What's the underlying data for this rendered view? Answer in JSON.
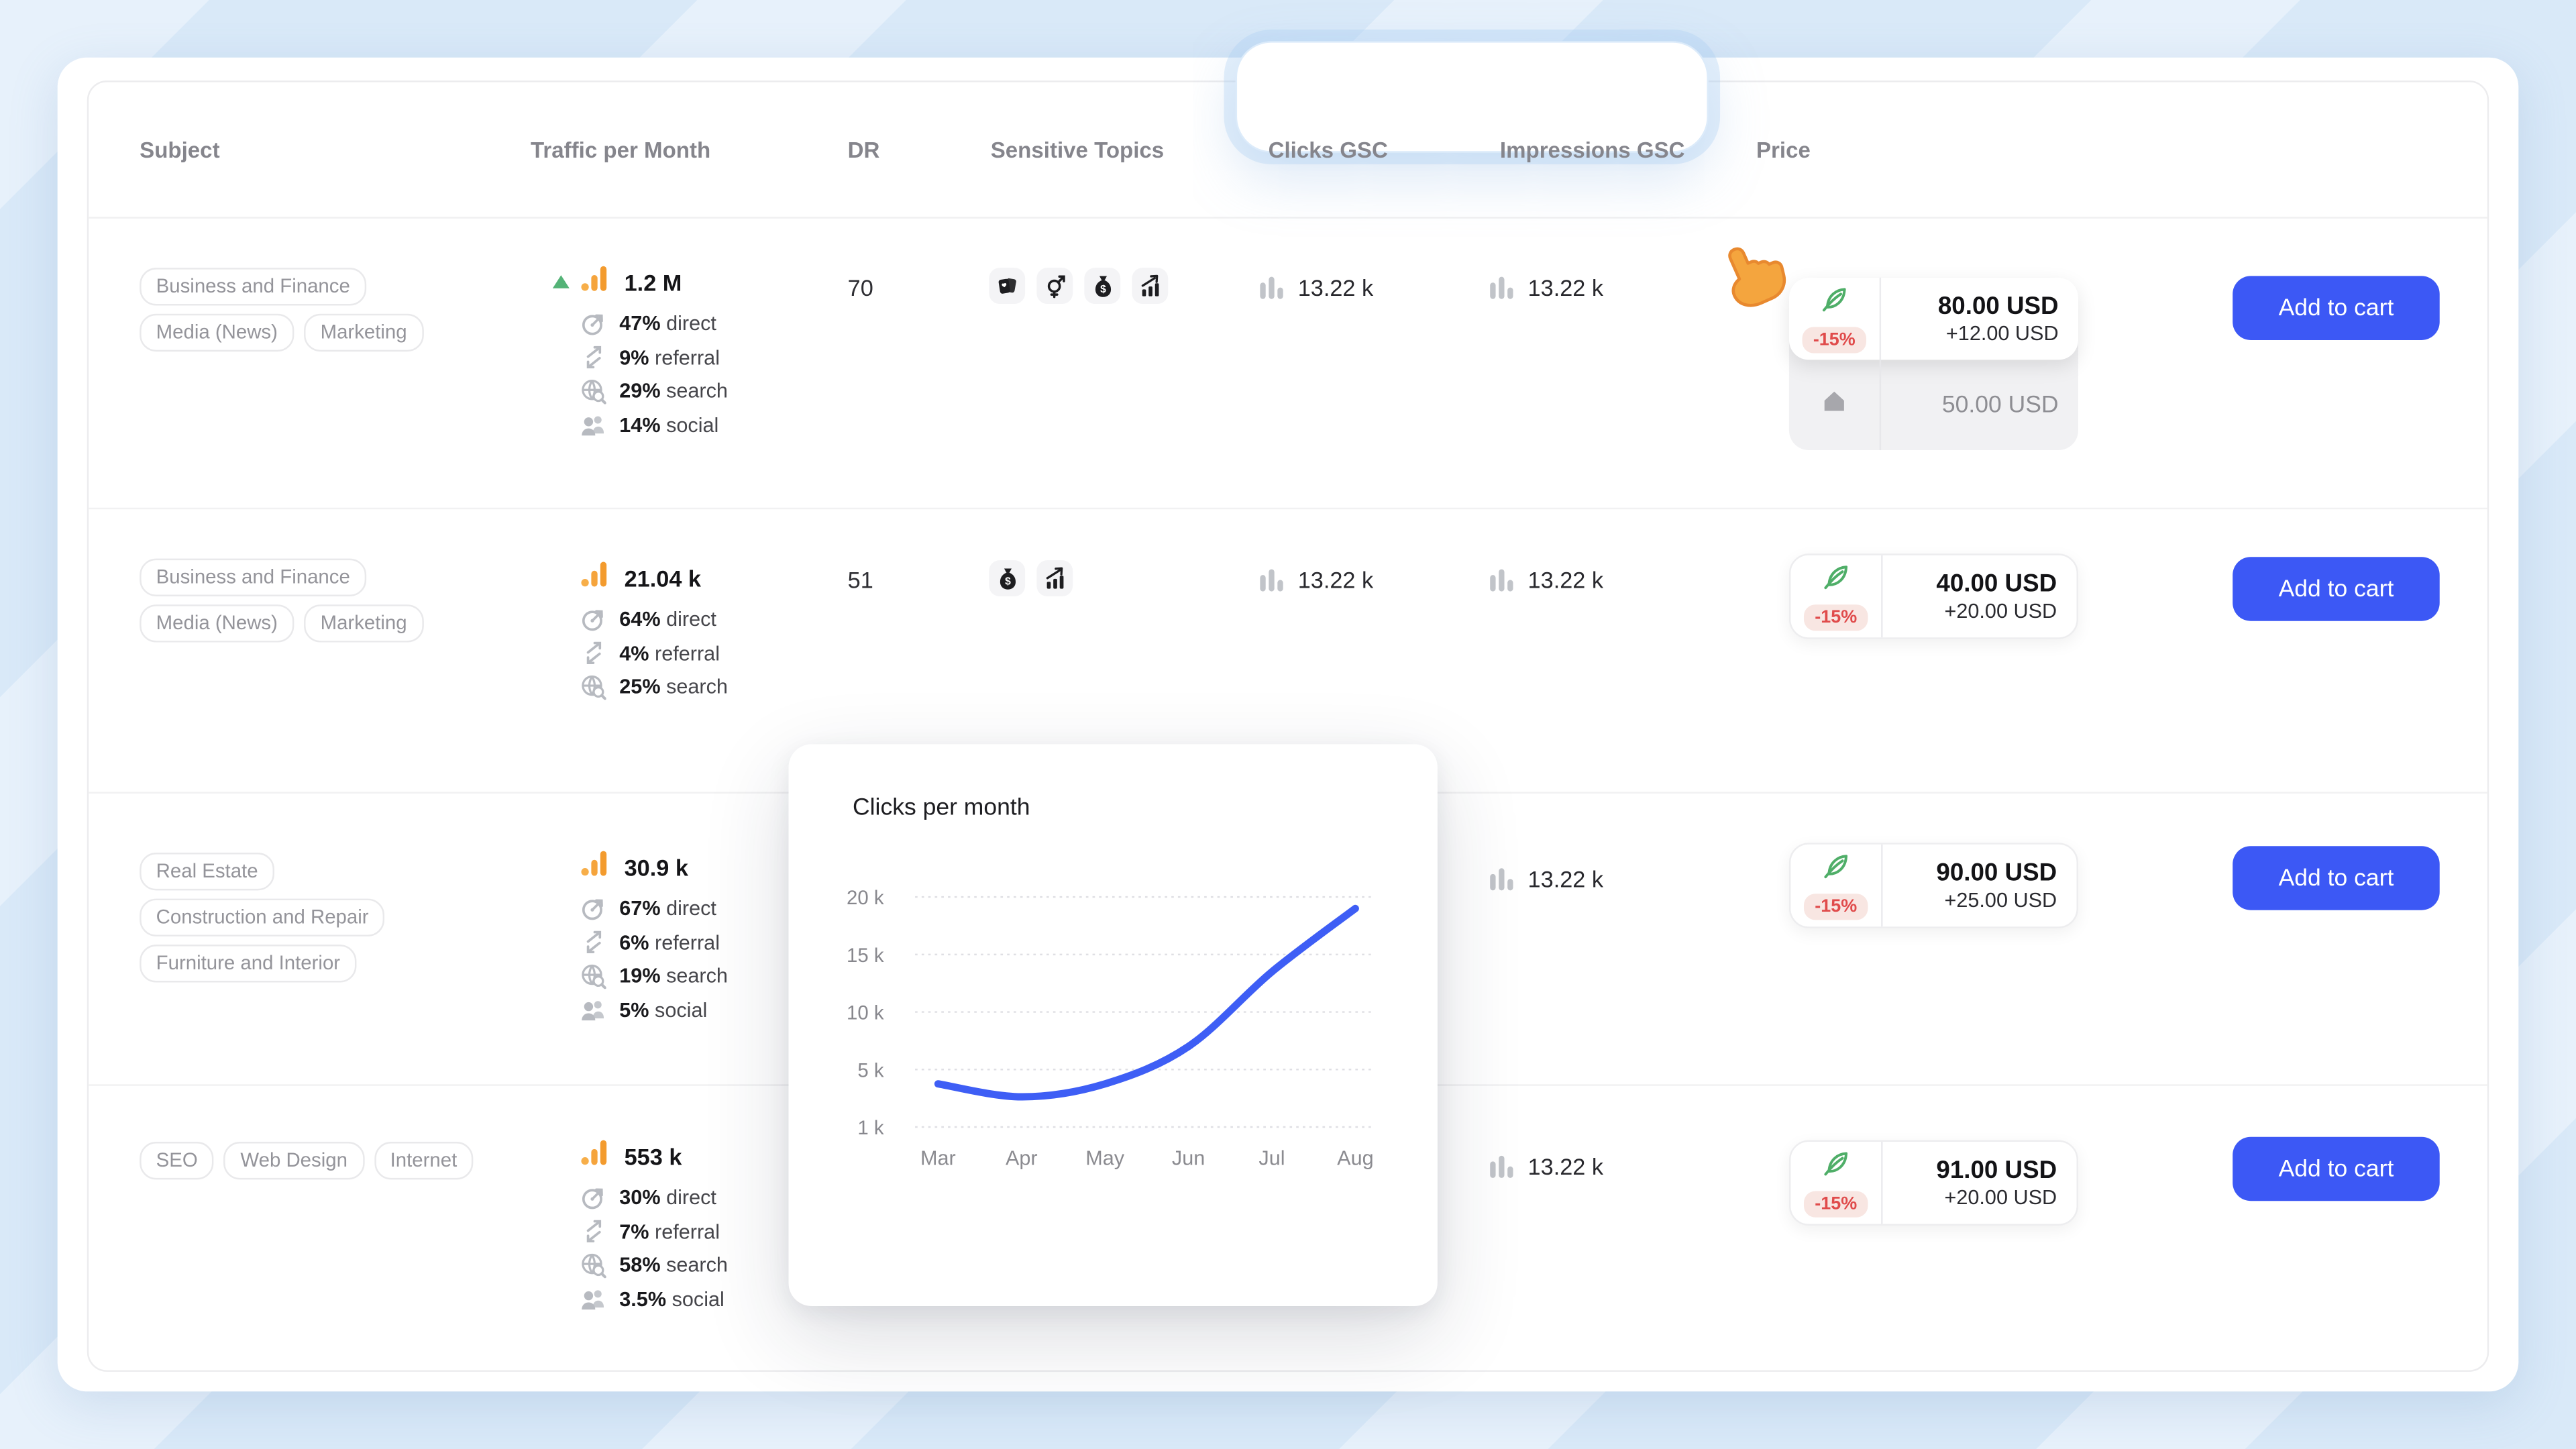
{
  "header": {
    "columns": [
      "Subject",
      "Traffic per Month",
      "DR",
      "Sensitive Topics",
      "Clicks GSC",
      "Impressions GSC",
      "Price"
    ]
  },
  "rows": [
    {
      "tags": [
        "Business and Finance",
        "Media (News)",
        "Marketing"
      ],
      "traffic": {
        "trend_up": true,
        "value": "1.2 M",
        "breakdown": [
          {
            "pct": "47%",
            "label": "direct",
            "icon": "direct"
          },
          {
            "pct": "9%",
            "label": "referral",
            "icon": "referral"
          },
          {
            "pct": "29%",
            "label": "search",
            "icon": "search"
          },
          {
            "pct": "14%",
            "label": "social",
            "icon": "social"
          }
        ]
      },
      "dr": "70",
      "topics": [
        "gambling-cards",
        "adult-gender",
        "money-bag",
        "trading-chart"
      ],
      "clicks": "13.22 k",
      "impressions": "13.22 k",
      "price": {
        "badge": "-15%",
        "main": "80.00 USD",
        "add": "+12.00 USD",
        "alt": "50.00 USD"
      },
      "cart": "Add to cart"
    },
    {
      "tags": [
        "Business and Finance",
        "Media (News)",
        "Marketing"
      ],
      "traffic": {
        "trend_up": false,
        "value": "21.04 k",
        "breakdown": [
          {
            "pct": "64%",
            "label": "direct",
            "icon": "direct"
          },
          {
            "pct": "4%",
            "label": "referral",
            "icon": "referral"
          },
          {
            "pct": "25%",
            "label": "search",
            "icon": "search"
          }
        ]
      },
      "dr": "51",
      "topics": [
        "money-bag",
        "trading-chart"
      ],
      "clicks": "13.22 k",
      "impressions": "13.22 k",
      "price": {
        "badge": "-15%",
        "main": "40.00 USD",
        "add": "+20.00 USD",
        "alt": null
      },
      "cart": "Add to cart"
    },
    {
      "tags": [
        "Real Estate",
        "Construction and Repair",
        "Furniture and Interior"
      ],
      "traffic": {
        "trend_up": false,
        "value": "30.9 k",
        "breakdown": [
          {
            "pct": "67%",
            "label": "direct",
            "icon": "direct"
          },
          {
            "pct": "6%",
            "label": "referral",
            "icon": "referral"
          },
          {
            "pct": "19%",
            "label": "search",
            "icon": "search"
          },
          {
            "pct": "5%",
            "label": "social",
            "icon": "social"
          }
        ]
      },
      "dr": null,
      "topics": [],
      "clicks": null,
      "impressions": "13.22 k",
      "price": {
        "badge": "-15%",
        "main": "90.00 USD",
        "add": "+25.00 USD",
        "alt": null
      },
      "cart": "Add to cart"
    },
    {
      "tags": [
        "SEO",
        "Web Design",
        "Internet"
      ],
      "traffic": {
        "trend_up": false,
        "value": "553 k",
        "breakdown": [
          {
            "pct": "30%",
            "label": "direct",
            "icon": "direct"
          },
          {
            "pct": "7%",
            "label": "referral",
            "icon": "referral"
          },
          {
            "pct": "58%",
            "label": "search",
            "icon": "search"
          },
          {
            "pct": "3.5%",
            "label": "social",
            "icon": "social"
          }
        ]
      },
      "dr": null,
      "topics": [],
      "clicks": null,
      "impressions": "13.22 k",
      "price": {
        "badge": "-15%",
        "main": "91.00 USD",
        "add": "+20.00 USD",
        "alt": null
      },
      "cart": "Add to cart"
    }
  ],
  "popup": {
    "title": "Clicks per month"
  },
  "chart_data": {
    "type": "line",
    "title": "Clicks per month",
    "x": [
      "Mar",
      "Apr",
      "May",
      "Jun",
      "Jul",
      "Aug"
    ],
    "values": [
      4000,
      3100,
      4000,
      7000,
      13500,
      19000
    ],
    "y_tick_labels": [
      "20 k",
      "15 k",
      "10 k",
      "5 k",
      "1 k"
    ],
    "y_tick_values": [
      20000,
      15000,
      10000,
      5000,
      1000
    ],
    "grid": "horizontal-only",
    "legend": "none",
    "line_color": "#3e5ef5"
  },
  "colors": {
    "accent_blue": "#3c58f5",
    "chart_line": "#3e5ef5",
    "discount_red": "#e04b4b",
    "discount_bg": "#f8e6e2",
    "feather_green": "#4fae68",
    "traffic_orange": "#f5a43c",
    "trend_green": "#54b377",
    "background_blue": "#d9e9f8"
  }
}
